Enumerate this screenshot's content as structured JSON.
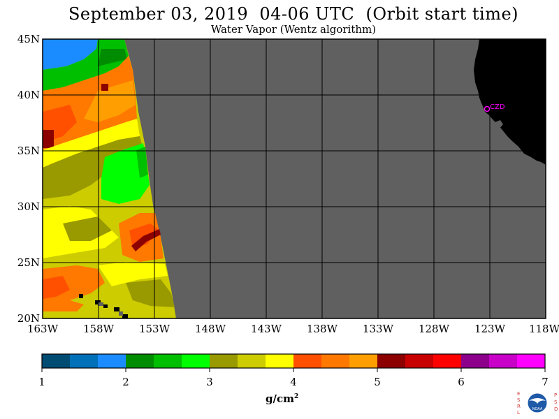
{
  "title": "September 03, 2019  04-06 UTC  (Orbit start time)",
  "subtitle": "Water Vapor (Wentz algorithm)",
  "map": {
    "lat_labels": [
      "45N",
      "40N",
      "35N",
      "30N",
      "25N",
      "20N"
    ],
    "lon_labels": [
      "163W",
      "158W",
      "153W",
      "148W",
      "143W",
      "138W",
      "133W",
      "128W",
      "123W",
      "118W"
    ],
    "station_label": "CZD",
    "colors": {
      "no_data": "#606060",
      "land": "#000000",
      "grid": "#000000",
      "station": "#ff00ff"
    }
  },
  "colorbar": {
    "unit_base": "g/cm",
    "unit_exp": "2",
    "tick_labels": [
      "1",
      "2",
      "3",
      "4",
      "5",
      "6",
      "7"
    ],
    "colors": [
      "#004c73",
      "#0070b8",
      "#1a8cff",
      "#008c00",
      "#00be00",
      "#00ff00",
      "#999900",
      "#cccc00",
      "#ffff00",
      "#ff5000",
      "#ff7800",
      "#ff9e00",
      "#8c0000",
      "#c80000",
      "#ff0000",
      "#8c008c",
      "#c800c8",
      "#ff00ff"
    ]
  },
  "logo": {
    "left_letters": "ESRL",
    "right_letters": "PSD",
    "badge": "NOAA"
  }
}
